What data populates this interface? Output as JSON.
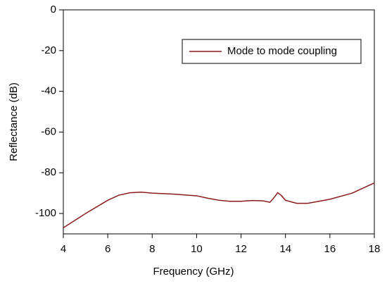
{
  "chart_data": {
    "type": "line",
    "x_label": "Frequency (GHz)",
    "y_label": "Reflectance (dB)",
    "x": [
      4,
      5,
      6,
      6.5,
      7,
      7.5,
      8,
      9,
      10,
      10.5,
      11,
      11.5,
      12,
      12.5,
      13,
      13.3,
      13.5,
      13.65,
      13.8,
      14,
      14.5,
      15,
      16,
      17,
      18
    ],
    "series": [
      {
        "name": "Mode to mode coupling",
        "color": "#8b1a1a",
        "values": [
          -107,
          -100,
          -93.5,
          -91,
          -89.8,
          -89.5,
          -90,
          -90.5,
          -91.3,
          -92.5,
          -93.5,
          -94,
          -94,
          -93.6,
          -93.8,
          -94.5,
          -92,
          -89.8,
          -91,
          -93.5,
          -95,
          -95,
          -93,
          -90,
          -85
        ]
      }
    ],
    "xlim": [
      4,
      18
    ],
    "xticks": [
      4,
      6,
      8,
      10,
      12,
      14,
      16,
      18
    ],
    "ylim": [
      -110,
      0
    ],
    "yticks": [
      0,
      -20,
      -40,
      -60,
      -80,
      -100
    ],
    "legend": "upper-right"
  }
}
